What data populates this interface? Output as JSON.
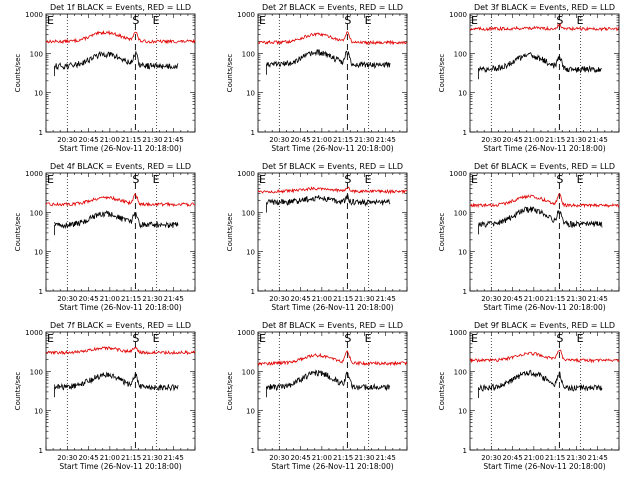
{
  "chart_data": [
    {
      "type": "line",
      "title": "Det 1f BLACK = Events, RED = LLD",
      "xlabel": "Start Time (26-Nov-11 20:18:00)",
      "ylabel": "Counts/sec",
      "yscale": "log",
      "ylim": [
        1,
        1000
      ],
      "xlim": [
        20.25,
        22.0
      ],
      "x_tick_labels": [
        "20:30",
        "20:45",
        "21:00",
        "21:15",
        "21:30",
        "21:45"
      ],
      "y_tick_labels": [
        "1",
        "10",
        "100",
        "1000"
      ],
      "marker_labels": [
        "E",
        "S",
        "E"
      ],
      "event_x": 21.3,
      "dotted_x": [
        20.5,
        21.55
      ],
      "lld_level": 200,
      "evt_level": 48,
      "evt_start": 20.35,
      "evt_end": 21.8,
      "bump_lld": 1.7,
      "bump_evt": 2.0,
      "peak_lld": 1.7,
      "peak_evt": 1.9,
      "series": [
        {
          "name": "BLACK",
          "color": "#000000"
        },
        {
          "name": "RED",
          "color": "#e00000"
        }
      ]
    },
    {
      "type": "line",
      "title": "Det 2f BLACK = Events, RED = LLD",
      "xlabel": "Start Time (26-Nov-11 20:18:00)",
      "ylabel": "Counts/sec",
      "yscale": "log",
      "ylim": [
        1,
        1000
      ],
      "xlim": [
        20.25,
        22.0
      ],
      "x_tick_labels": [
        "20:30",
        "20:45",
        "21:00",
        "21:15",
        "21:30",
        "21:45"
      ],
      "y_tick_labels": [
        "1",
        "10",
        "100",
        "1000"
      ],
      "marker_labels": [
        "E",
        "S",
        "E"
      ],
      "event_x": 21.3,
      "dotted_x": [
        20.5,
        21.55
      ],
      "lld_level": 190,
      "evt_level": 52,
      "evt_start": 20.35,
      "evt_end": 21.8,
      "bump_lld": 1.6,
      "bump_evt": 2.0,
      "peak_lld": 1.7,
      "peak_evt": 1.9,
      "series": [
        {
          "name": "BLACK",
          "color": "#000000"
        },
        {
          "name": "RED",
          "color": "#e00000"
        }
      ]
    },
    {
      "type": "line",
      "title": "Det 3f BLACK = Events, RED = LLD",
      "xlabel": "Start Time (26-Nov-11 20:18:00)",
      "ylabel": "Counts/sec",
      "yscale": "log",
      "ylim": [
        1,
        1000
      ],
      "xlim": [
        20.25,
        22.0
      ],
      "x_tick_labels": [
        "20:30",
        "20:45",
        "21:00",
        "21:15",
        "21:30",
        "21:45"
      ],
      "y_tick_labels": [
        "1",
        "10",
        "100",
        "1000"
      ],
      "marker_labels": [
        "E",
        "S",
        "E"
      ],
      "event_x": 21.3,
      "dotted_x": [
        20.5,
        21.55
      ],
      "lld_level": 420,
      "evt_level": 40,
      "evt_start": 20.35,
      "evt_end": 21.8,
      "bump_lld": 1.05,
      "bump_evt": 2.2,
      "peak_lld": 1.25,
      "peak_evt": 1.9,
      "series": [
        {
          "name": "BLACK",
          "color": "#000000"
        },
        {
          "name": "RED",
          "color": "#e00000"
        }
      ]
    },
    {
      "type": "line",
      "title": "Det 4f BLACK = Events, RED = LLD",
      "xlabel": "Start Time (26-Nov-11 20:18:00)",
      "ylabel": "Counts/sec",
      "yscale": "log",
      "ylim": [
        1,
        1000
      ],
      "xlim": [
        20.25,
        22.0
      ],
      "x_tick_labels": [
        "20:30",
        "20:45",
        "21:00",
        "21:15",
        "21:30",
        "21:45"
      ],
      "y_tick_labels": [
        "1",
        "10",
        "100",
        "1000"
      ],
      "marker_labels": [
        "E",
        "S",
        "E"
      ],
      "event_x": 21.3,
      "dotted_x": [
        20.5,
        21.55
      ],
      "lld_level": 160,
      "evt_level": 48,
      "evt_start": 20.35,
      "evt_end": 21.8,
      "bump_lld": 1.5,
      "bump_evt": 1.9,
      "peak_lld": 1.7,
      "peak_evt": 1.9,
      "series": [
        {
          "name": "BLACK",
          "color": "#000000"
        },
        {
          "name": "RED",
          "color": "#e00000"
        }
      ]
    },
    {
      "type": "line",
      "title": "Det 5f BLACK = Events, RED = LLD",
      "xlabel": "Start Time (26-Nov-11 20:18:00)",
      "ylabel": "Counts/sec",
      "yscale": "log",
      "ylim": [
        1,
        1000
      ],
      "xlim": [
        20.25,
        22.0
      ],
      "x_tick_labels": [
        "20:30",
        "20:45",
        "21:00",
        "21:15",
        "21:30",
        "21:45"
      ],
      "y_tick_labels": [
        "1",
        "10",
        "100",
        "1000"
      ],
      "marker_labels": [
        "E",
        "S",
        "E"
      ],
      "event_x": 21.3,
      "dotted_x": [
        20.5,
        21.55
      ],
      "lld_level": 340,
      "evt_level": 180,
      "evt_start": 20.35,
      "evt_end": 21.8,
      "bump_lld": 1.2,
      "bump_evt": 1.3,
      "peak_lld": 1.25,
      "peak_evt": 1.3,
      "series": [
        {
          "name": "BLACK",
          "color": "#000000"
        },
        {
          "name": "RED",
          "color": "#e00000"
        }
      ]
    },
    {
      "type": "line",
      "title": "Det 6f BLACK = Events, RED = LLD",
      "xlabel": "Start Time (26-Nov-11 20:18:00)",
      "ylabel": "Counts/sec",
      "yscale": "log",
      "ylim": [
        1,
        1000
      ],
      "xlim": [
        20.25,
        22.0
      ],
      "x_tick_labels": [
        "20:30",
        "20:45",
        "21:00",
        "21:15",
        "21:30",
        "21:45"
      ],
      "y_tick_labels": [
        "1",
        "10",
        "100",
        "1000"
      ],
      "marker_labels": [
        "E",
        "S",
        "E"
      ],
      "event_x": 21.3,
      "dotted_x": [
        20.5,
        21.55
      ],
      "lld_level": 150,
      "evt_level": 50,
      "evt_start": 20.35,
      "evt_end": 21.8,
      "bump_lld": 1.7,
      "bump_evt": 2.4,
      "peak_lld": 1.8,
      "peak_evt": 1.9,
      "series": [
        {
          "name": "BLACK",
          "color": "#000000"
        },
        {
          "name": "RED",
          "color": "#e00000"
        }
      ]
    },
    {
      "type": "line",
      "title": "Det 7f BLACK = Events, RED = LLD",
      "xlabel": "Start Time (26-Nov-11 20:18:00)",
      "ylabel": "Counts/sec",
      "yscale": "log",
      "ylim": [
        1,
        1000
      ],
      "xlim": [
        20.25,
        22.0
      ],
      "x_tick_labels": [
        "20:30",
        "20:45",
        "21:00",
        "21:15",
        "21:30",
        "21:45"
      ],
      "y_tick_labels": [
        "1",
        "10",
        "100",
        "1000"
      ],
      "marker_labels": [
        "E",
        "S",
        "E"
      ],
      "event_x": 21.3,
      "dotted_x": [
        20.5,
        21.55
      ],
      "lld_level": 300,
      "evt_level": 40,
      "evt_start": 20.35,
      "evt_end": 21.8,
      "bump_lld": 1.3,
      "bump_evt": 2.0,
      "peak_lld": 1.4,
      "peak_evt": 1.9,
      "series": [
        {
          "name": "BLACK",
          "color": "#000000"
        },
        {
          "name": "RED",
          "color": "#e00000"
        }
      ]
    },
    {
      "type": "line",
      "title": "Det 8f BLACK = Events, RED = LLD",
      "xlabel": "Start Time (26-Nov-11 20:18:00)",
      "ylabel": "Counts/sec",
      "yscale": "log",
      "ylim": [
        1,
        1000
      ],
      "xlim": [
        20.25,
        22.0
      ],
      "x_tick_labels": [
        "20:30",
        "20:45",
        "21:00",
        "21:15",
        "21:30",
        "21:45"
      ],
      "y_tick_labels": [
        "1",
        "10",
        "100",
        "1000"
      ],
      "marker_labels": [
        "E",
        "S",
        "E"
      ],
      "event_x": 21.3,
      "dotted_x": [
        20.5,
        21.55
      ],
      "lld_level": 160,
      "evt_level": 40,
      "evt_start": 20.35,
      "evt_end": 21.8,
      "bump_lld": 1.6,
      "bump_evt": 2.3,
      "peak_lld": 1.9,
      "peak_evt": 2.0,
      "series": [
        {
          "name": "BLACK",
          "color": "#000000"
        },
        {
          "name": "RED",
          "color": "#e00000"
        }
      ]
    },
    {
      "type": "line",
      "title": "Det 9f BLACK = Events, RED = LLD",
      "xlabel": "Start Time (26-Nov-11 20:18:00)",
      "ylabel": "Counts/sec",
      "yscale": "log",
      "ylim": [
        1,
        1000
      ],
      "xlim": [
        20.25,
        22.0
      ],
      "x_tick_labels": [
        "20:30",
        "20:45",
        "21:00",
        "21:15",
        "21:30",
        "21:45"
      ],
      "y_tick_labels": [
        "1",
        "10",
        "100",
        "1000"
      ],
      "marker_labels": [
        "E",
        "S",
        "E"
      ],
      "event_x": 21.3,
      "dotted_x": [
        20.5,
        21.55
      ],
      "lld_level": 190,
      "evt_level": 38,
      "evt_start": 20.35,
      "evt_end": 21.8,
      "bump_lld": 1.5,
      "bump_evt": 2.4,
      "peak_lld": 1.8,
      "peak_evt": 2.0,
      "series": [
        {
          "name": "BLACK",
          "color": "#000000"
        },
        {
          "name": "RED",
          "color": "#e00000"
        }
      ]
    }
  ]
}
